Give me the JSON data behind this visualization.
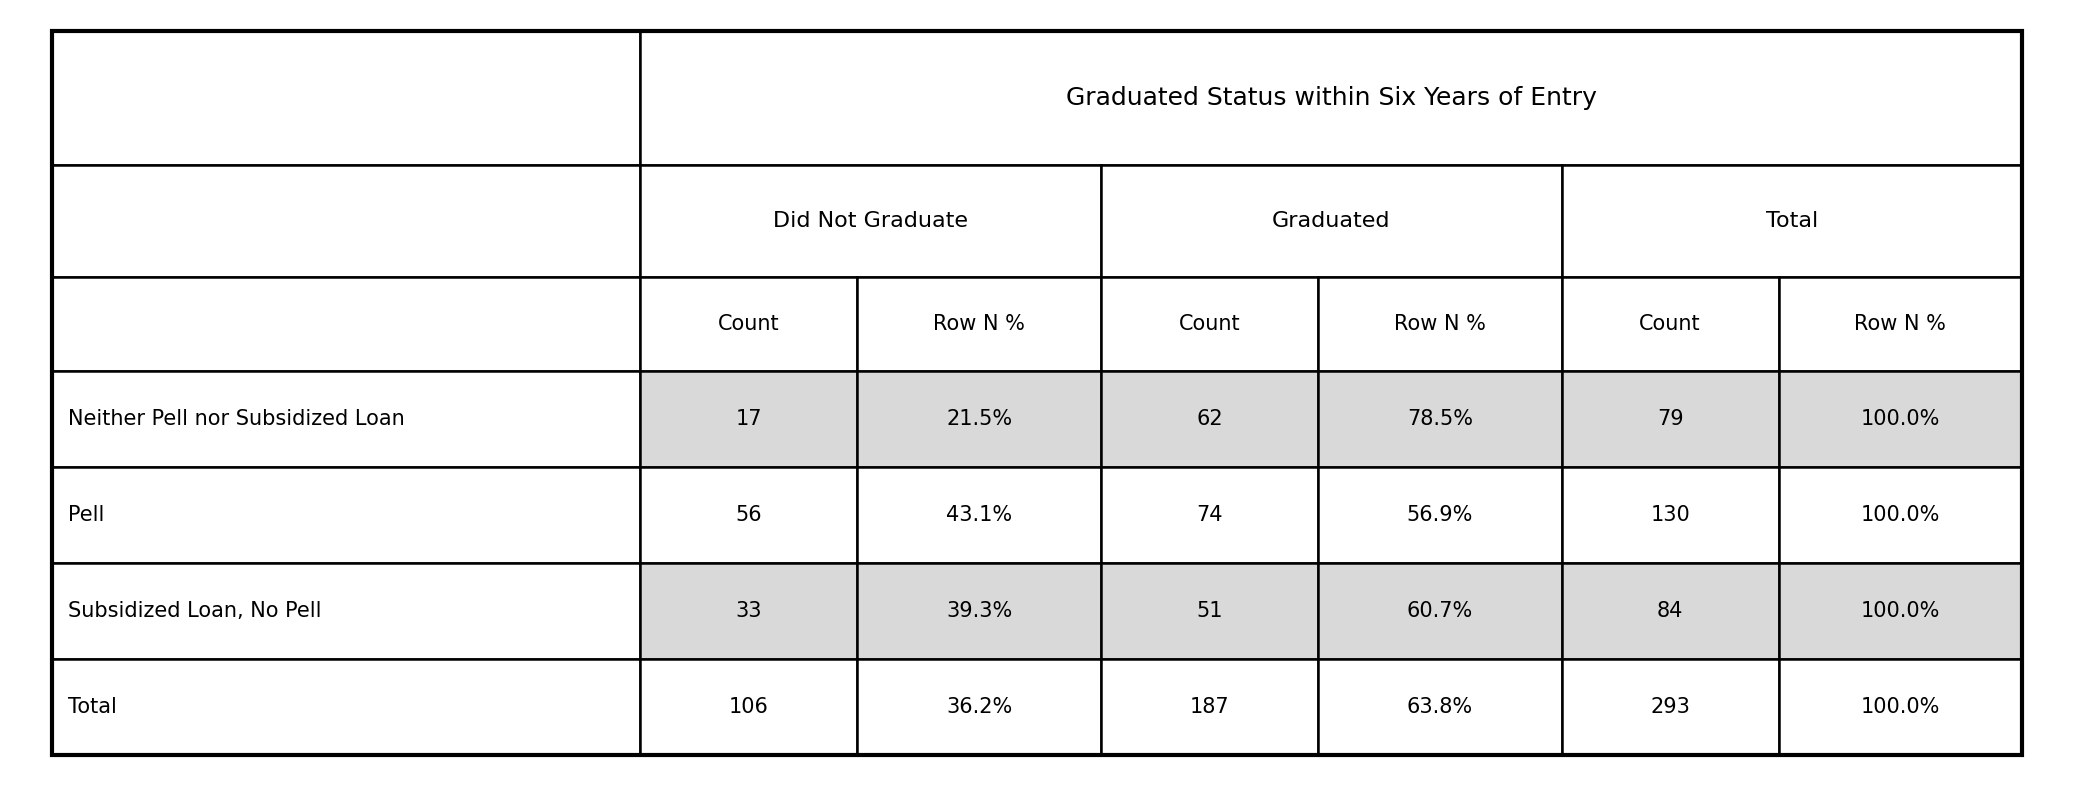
{
  "title": "Graduated Status within Six Years of Entry",
  "col_groups": [
    "Did Not Graduate",
    "Graduated",
    "Total"
  ],
  "col_subheaders": [
    "Count",
    "Row N %",
    "Count",
    "Row N %",
    "Count",
    "Row N %"
  ],
  "row_labels": [
    "Neither Pell nor Subsidized Loan",
    "Pell",
    "Subsidized Loan, No Pell",
    "Total"
  ],
  "table_data": [
    [
      "17",
      "21.5%",
      "62",
      "78.5%",
      "79",
      "100.0%"
    ],
    [
      "56",
      "43.1%",
      "74",
      "56.9%",
      "130",
      "100.0%"
    ],
    [
      "33",
      "39.3%",
      "51",
      "60.7%",
      "84",
      "100.0%"
    ],
    [
      "106",
      "36.2%",
      "187",
      "63.8%",
      "293",
      "100.0%"
    ]
  ],
  "bg_white": "#ffffff",
  "bg_gray": "#d9d9d9",
  "border_color": "#000000",
  "text_color": "#000000",
  "font_size_title": 18,
  "font_size_group": 16,
  "font_size_sub": 15,
  "font_size_data": 15,
  "fig_width": 20.74,
  "fig_height": 7.86
}
